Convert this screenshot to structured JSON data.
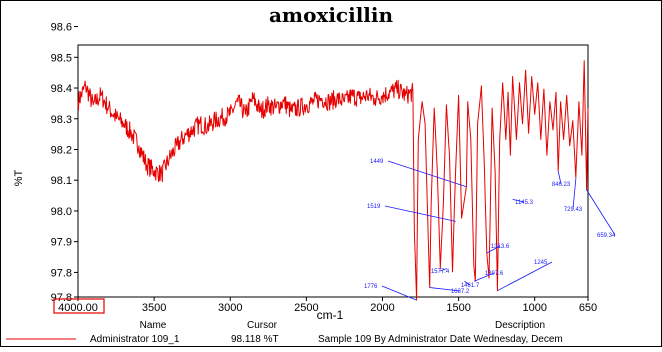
{
  "chart_data": {
    "type": "line",
    "title": "amoxicillin",
    "xlabel": "cm-1",
    "ylabel": "%T",
    "xlim": [
      4000,
      650
    ],
    "ylim": [
      97.8,
      98.6
    ],
    "x_ticks": [
      "4000.00",
      "3500",
      "3000",
      "2500",
      "2000",
      "1500",
      "1000",
      "650"
    ],
    "y_ticks": [
      "97.8",
      "97.8",
      "97.9",
      "98.0",
      "98.1",
      "98.2",
      "98.3",
      "98.4",
      "98.5",
      "98.6"
    ],
    "grid": false,
    "series": [
      {
        "name": "Administrator 109_1",
        "color": "#e60000",
        "points": [
          [
            4000,
            98.42
          ],
          [
            3950,
            98.47
          ],
          [
            3900,
            98.41
          ],
          [
            3850,
            98.44
          ],
          [
            3800,
            98.4
          ],
          [
            3750,
            98.37
          ],
          [
            3700,
            98.35
          ],
          [
            3650,
            98.32
          ],
          [
            3600,
            98.28
          ],
          [
            3550,
            98.22
          ],
          [
            3500,
            98.2
          ],
          [
            3450,
            98.19
          ],
          [
            3400,
            98.24
          ],
          [
            3350,
            98.28
          ],
          [
            3300,
            98.31
          ],
          [
            3250,
            98.33
          ],
          [
            3200,
            98.35
          ],
          [
            3150,
            98.34
          ],
          [
            3100,
            98.36
          ],
          [
            3050,
            98.37
          ],
          [
            3000,
            98.38
          ],
          [
            2950,
            98.42
          ],
          [
            2900,
            98.38
          ],
          [
            2850,
            98.43
          ],
          [
            2800,
            98.39
          ],
          [
            2750,
            98.41
          ],
          [
            2700,
            98.4
          ],
          [
            2650,
            98.42
          ],
          [
            2600,
            98.39
          ],
          [
            2550,
            98.4
          ],
          [
            2500,
            98.41
          ],
          [
            2450,
            98.42
          ],
          [
            2400,
            98.43
          ],
          [
            2350,
            98.42
          ],
          [
            2300,
            98.43
          ],
          [
            2250,
            98.42
          ],
          [
            2200,
            98.44
          ],
          [
            2150,
            98.43
          ],
          [
            2100,
            98.44
          ],
          [
            2050,
            98.43
          ],
          [
            2000,
            98.44
          ],
          [
            1950,
            98.45
          ],
          [
            1900,
            98.46
          ],
          [
            1850,
            98.44
          ],
          [
            1800,
            98.45
          ],
          [
            1790,
            98.0
          ],
          [
            1776,
            97.79
          ],
          [
            1765,
            98.3
          ],
          [
            1740,
            98.42
          ],
          [
            1720,
            98.35
          ],
          [
            1690,
            97.83
          ],
          [
            1680,
            98.1
          ],
          [
            1660,
            98.4
          ],
          [
            1640,
            98.2
          ],
          [
            1620,
            97.89
          ],
          [
            1600,
            98.1
          ],
          [
            1580,
            98.41
          ],
          [
            1560,
            98.25
          ],
          [
            1540,
            97.88
          ],
          [
            1520,
            98.2
          ],
          [
            1500,
            98.44
          ],
          [
            1480,
            98.05
          ],
          [
            1449,
            98.15
          ],
          [
            1440,
            98.42
          ],
          [
            1420,
            98.3
          ],
          [
            1400,
            97.9
          ],
          [
            1390,
            97.85
          ],
          [
            1375,
            98.35
          ],
          [
            1350,
            98.47
          ],
          [
            1330,
            98.2
          ],
          [
            1315,
            97.94
          ],
          [
            1300,
            97.86
          ],
          [
            1280,
            98.4
          ],
          [
            1260,
            98.2
          ],
          [
            1245,
            97.82
          ],
          [
            1230,
            98.3
          ],
          [
            1210,
            98.48
          ],
          [
            1190,
            98.3
          ],
          [
            1175,
            98.45
          ],
          [
            1160,
            98.25
          ],
          [
            1145,
            98.5
          ],
          [
            1120,
            98.3
          ],
          [
            1100,
            98.48
          ],
          [
            1080,
            98.35
          ],
          [
            1060,
            98.52
          ],
          [
            1040,
            98.32
          ],
          [
            1020,
            98.5
          ],
          [
            1000,
            98.38
          ],
          [
            980,
            98.48
          ],
          [
            960,
            98.3
          ],
          [
            940,
            98.46
          ],
          [
            920,
            98.25
          ],
          [
            900,
            98.42
          ],
          [
            880,
            98.33
          ],
          [
            860,
            98.45
          ],
          [
            846,
            98.2
          ],
          [
            830,
            98.42
          ],
          [
            810,
            98.3
          ],
          [
            790,
            98.44
          ],
          [
            770,
            98.28
          ],
          [
            750,
            98.36
          ],
          [
            730,
            98.18
          ],
          [
            710,
            98.42
          ],
          [
            690,
            98.25
          ],
          [
            675,
            98.55
          ],
          [
            665,
            98.3
          ],
          [
            659,
            98.14
          ],
          [
            650,
            98.4
          ]
        ]
      }
    ],
    "peak_labels": [
      {
        "text": "1449",
        "wn": 1449,
        "t": 98.15
      },
      {
        "text": "1519",
        "wn": 1519,
        "t": 98.04
      },
      {
        "text": "1776",
        "wn": 1776,
        "t": 97.79
      },
      {
        "text": "1577.4",
        "wn": 1577,
        "t": 97.89
      },
      {
        "text": "1687.2",
        "wn": 1687,
        "t": 97.83
      },
      {
        "text": "1461.7",
        "wn": 1461,
        "t": 97.85
      },
      {
        "text": "1397.6",
        "wn": 1397,
        "t": 97.85
      },
      {
        "text": "1313.6",
        "wn": 1313,
        "t": 97.94
      },
      {
        "text": "1245",
        "wn": 1245,
        "t": 97.82
      },
      {
        "text": "1145.3",
        "wn": 1145,
        "t": 98.11
      },
      {
        "text": "846.23",
        "wn": 846,
        "t": 98.2
      },
      {
        "text": "729.43",
        "wn": 729,
        "t": 98.18
      },
      {
        "text": "659.34",
        "wn": 659,
        "t": 98.14
      }
    ]
  },
  "legend": {
    "headers": {
      "name": "Name",
      "cursor": "Cursor",
      "description": "Description"
    },
    "row": {
      "name": "Administrator 109_1",
      "cursor": "98.118 %T",
      "description": "Sample 109 By Administrator Date Wednesday, Decem"
    }
  }
}
